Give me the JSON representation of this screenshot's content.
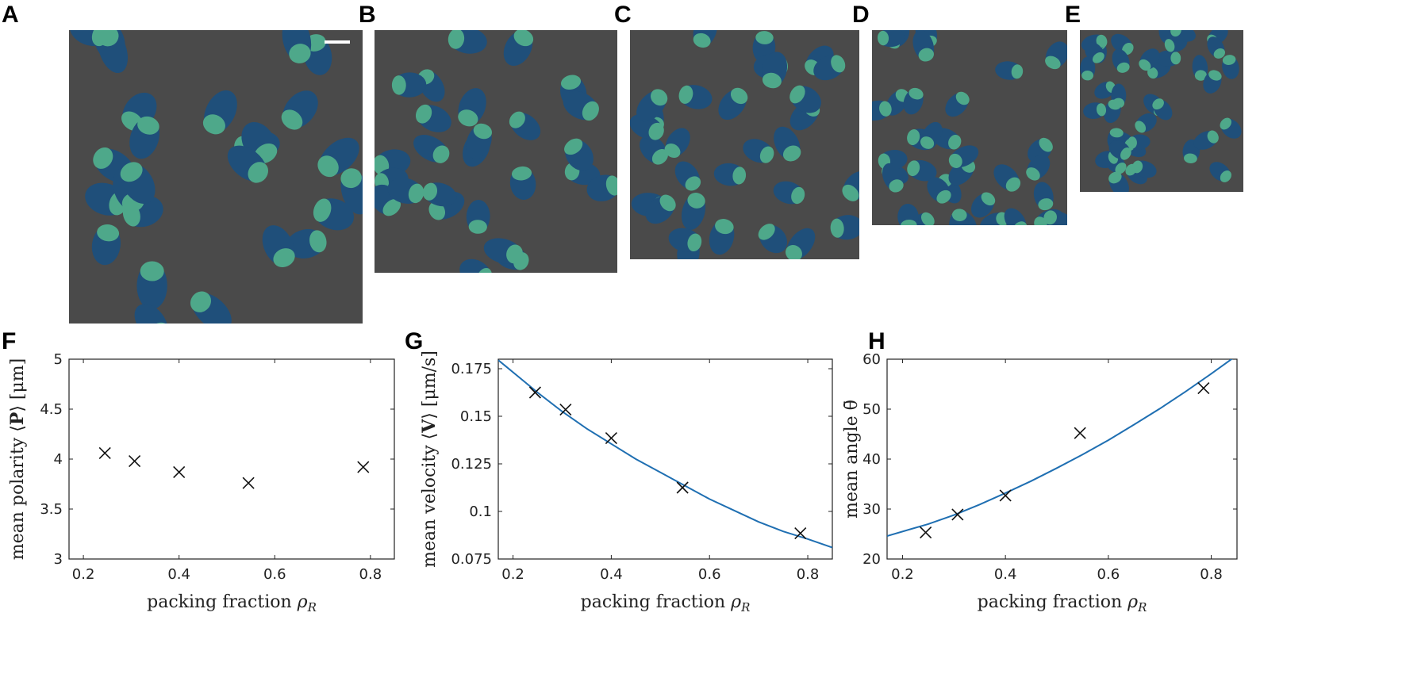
{
  "panels": {
    "A": "A",
    "B": "B",
    "C": "C",
    "D": "D",
    "E": "E",
    "F": "F",
    "G": "G",
    "H": "H"
  },
  "colors": {
    "background": "#4a4a4a",
    "cell": "#1f4f7a",
    "polarity": "#4ea88a",
    "fit": "#1f6fb2",
    "marker": "#111111"
  },
  "chart_data": [
    {
      "type": "scatter",
      "panel": "F",
      "title": "",
      "xlabel": "packing fraction",
      "xsym": "ρ",
      "xsub": "R",
      "ylabel_prefix": "mean polarity ⟨",
      "ylabel_bold": "P",
      "ylabel_suffix": "⟩ [μm]",
      "xlim": [
        0.17,
        0.85
      ],
      "ylim": [
        3,
        5
      ],
      "xticks": [
        0.2,
        0.4,
        0.6,
        0.8
      ],
      "xtick_labels": [
        "0.2",
        "0.4",
        "0.6",
        "0.8"
      ],
      "yticks": [
        3,
        3.5,
        4,
        4.5,
        5
      ],
      "ytick_labels": [
        "3",
        "3.5",
        "4",
        "4.5",
        "5"
      ],
      "x": [
        0.245,
        0.307,
        0.4,
        0.545,
        0.785
      ],
      "y": [
        4.06,
        3.98,
        3.87,
        3.76,
        3.92
      ]
    },
    {
      "type": "scatter",
      "panel": "G",
      "title": "",
      "xlabel": "packing fraction",
      "xsym": "ρ",
      "xsub": "R",
      "ylabel_prefix": "mean velocity ⟨",
      "ylabel_bold": "V",
      "ylabel_suffix": "⟩ [μm/s]",
      "xlim": [
        0.17,
        0.85
      ],
      "ylim": [
        0.075,
        0.18
      ],
      "xticks": [
        0.2,
        0.4,
        0.6,
        0.8
      ],
      "xtick_labels": [
        "0.2",
        "0.4",
        "0.6",
        "0.8"
      ],
      "yticks": [
        0.075,
        0.1,
        0.125,
        0.15,
        0.175
      ],
      "ytick_labels": [
        "0.075",
        "0.1",
        "0.125",
        "0.15",
        "0.175"
      ],
      "x": [
        0.245,
        0.307,
        0.4,
        0.545,
        0.785
      ],
      "y": [
        0.1625,
        0.1535,
        0.1385,
        0.1125,
        0.0885
      ],
      "fit": {
        "x": [
          0.17,
          0.25,
          0.3,
          0.35,
          0.4,
          0.45,
          0.5,
          0.55,
          0.6,
          0.65,
          0.7,
          0.75,
          0.8,
          0.85
        ],
        "y": [
          0.1795,
          0.1625,
          0.1525,
          0.1435,
          0.1355,
          0.1275,
          0.1205,
          0.1135,
          0.1065,
          0.1005,
          0.0945,
          0.0895,
          0.0855,
          0.081
        ]
      }
    },
    {
      "type": "scatter",
      "panel": "H",
      "title": "",
      "xlabel": "packing fraction",
      "xsym": "ρ",
      "xsub": "R",
      "ylabel_prefix": "mean angle ",
      "ylabel_bold": "",
      "ylabel_suffix": "θ̄",
      "xlim": [
        0.17,
        0.85
      ],
      "ylim": [
        20,
        60
      ],
      "xticks": [
        0.2,
        0.4,
        0.6,
        0.8
      ],
      "xtick_labels": [
        "0.2",
        "0.4",
        "0.6",
        "0.8"
      ],
      "yticks": [
        20,
        30,
        40,
        50,
        60
      ],
      "ytick_labels": [
        "20",
        "30",
        "40",
        "50",
        "60"
      ],
      "x": [
        0.245,
        0.307,
        0.4,
        0.545,
        0.785
      ],
      "y": [
        25.3,
        28.9,
        32.7,
        45.2,
        54.2
      ],
      "fit": {
        "x": [
          0.17,
          0.25,
          0.3,
          0.35,
          0.4,
          0.45,
          0.5,
          0.55,
          0.6,
          0.65,
          0.7,
          0.75,
          0.8,
          0.85
        ],
        "y": [
          24.6,
          27.0,
          28.8,
          30.9,
          33.2,
          35.6,
          38.2,
          40.9,
          43.8,
          46.9,
          50.1,
          53.5,
          57.1,
          60.8
        ]
      }
    }
  ]
}
